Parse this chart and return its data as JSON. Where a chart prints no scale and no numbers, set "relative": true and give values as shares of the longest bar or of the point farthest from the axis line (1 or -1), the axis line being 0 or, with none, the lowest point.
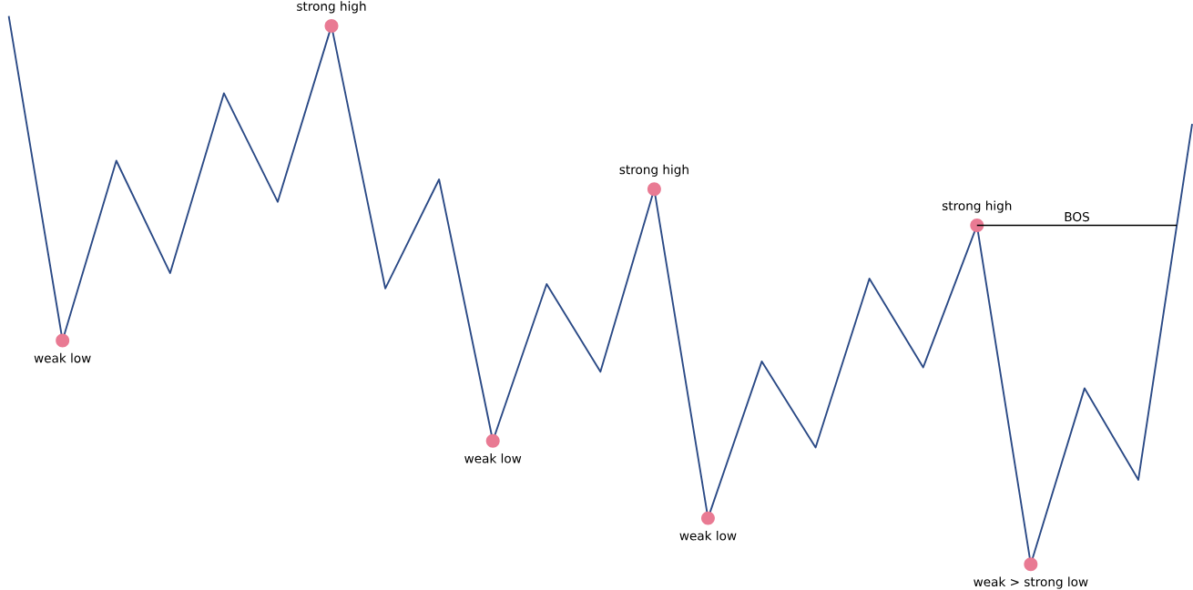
{
  "chart_data": {
    "type": "line",
    "relative": true,
    "categories": [
      null,
      null,
      null,
      null,
      null,
      null,
      null,
      null,
      null,
      null,
      null,
      null,
      null,
      null,
      null,
      null,
      null,
      null,
      null,
      null,
      null,
      null,
      null
    ],
    "series": [
      {
        "color": "#2b4a86",
        "values": [
          1.0,
          0.408,
          0.736,
          0.531,
          0.859,
          0.661,
          0.982,
          0.503,
          0.702,
          0.225,
          0.511,
          0.351,
          0.684,
          0.084,
          0.37,
          0.213,
          0.521,
          0.359,
          0.618,
          0.0,
          0.321,
          0.154,
          0.803
        ]
      }
    ],
    "annotations": [
      {
        "text": "weak low",
        "y": 0.408
      },
      {
        "text": "strong high",
        "y": 0.982
      },
      {
        "text": "weak low",
        "y": 0.225
      },
      {
        "text": "strong high",
        "y": 0.684
      },
      {
        "text": "weak low",
        "y": 0.084
      },
      {
        "text": "strong high",
        "y": 0.618
      },
      {
        "text": "weak > strong low",
        "y": 0.0
      }
    ],
    "ref_lines": [
      {
        "axis": "y",
        "value": 0.618,
        "label": "BOS",
        "color": "#000000"
      }
    ]
  }
}
